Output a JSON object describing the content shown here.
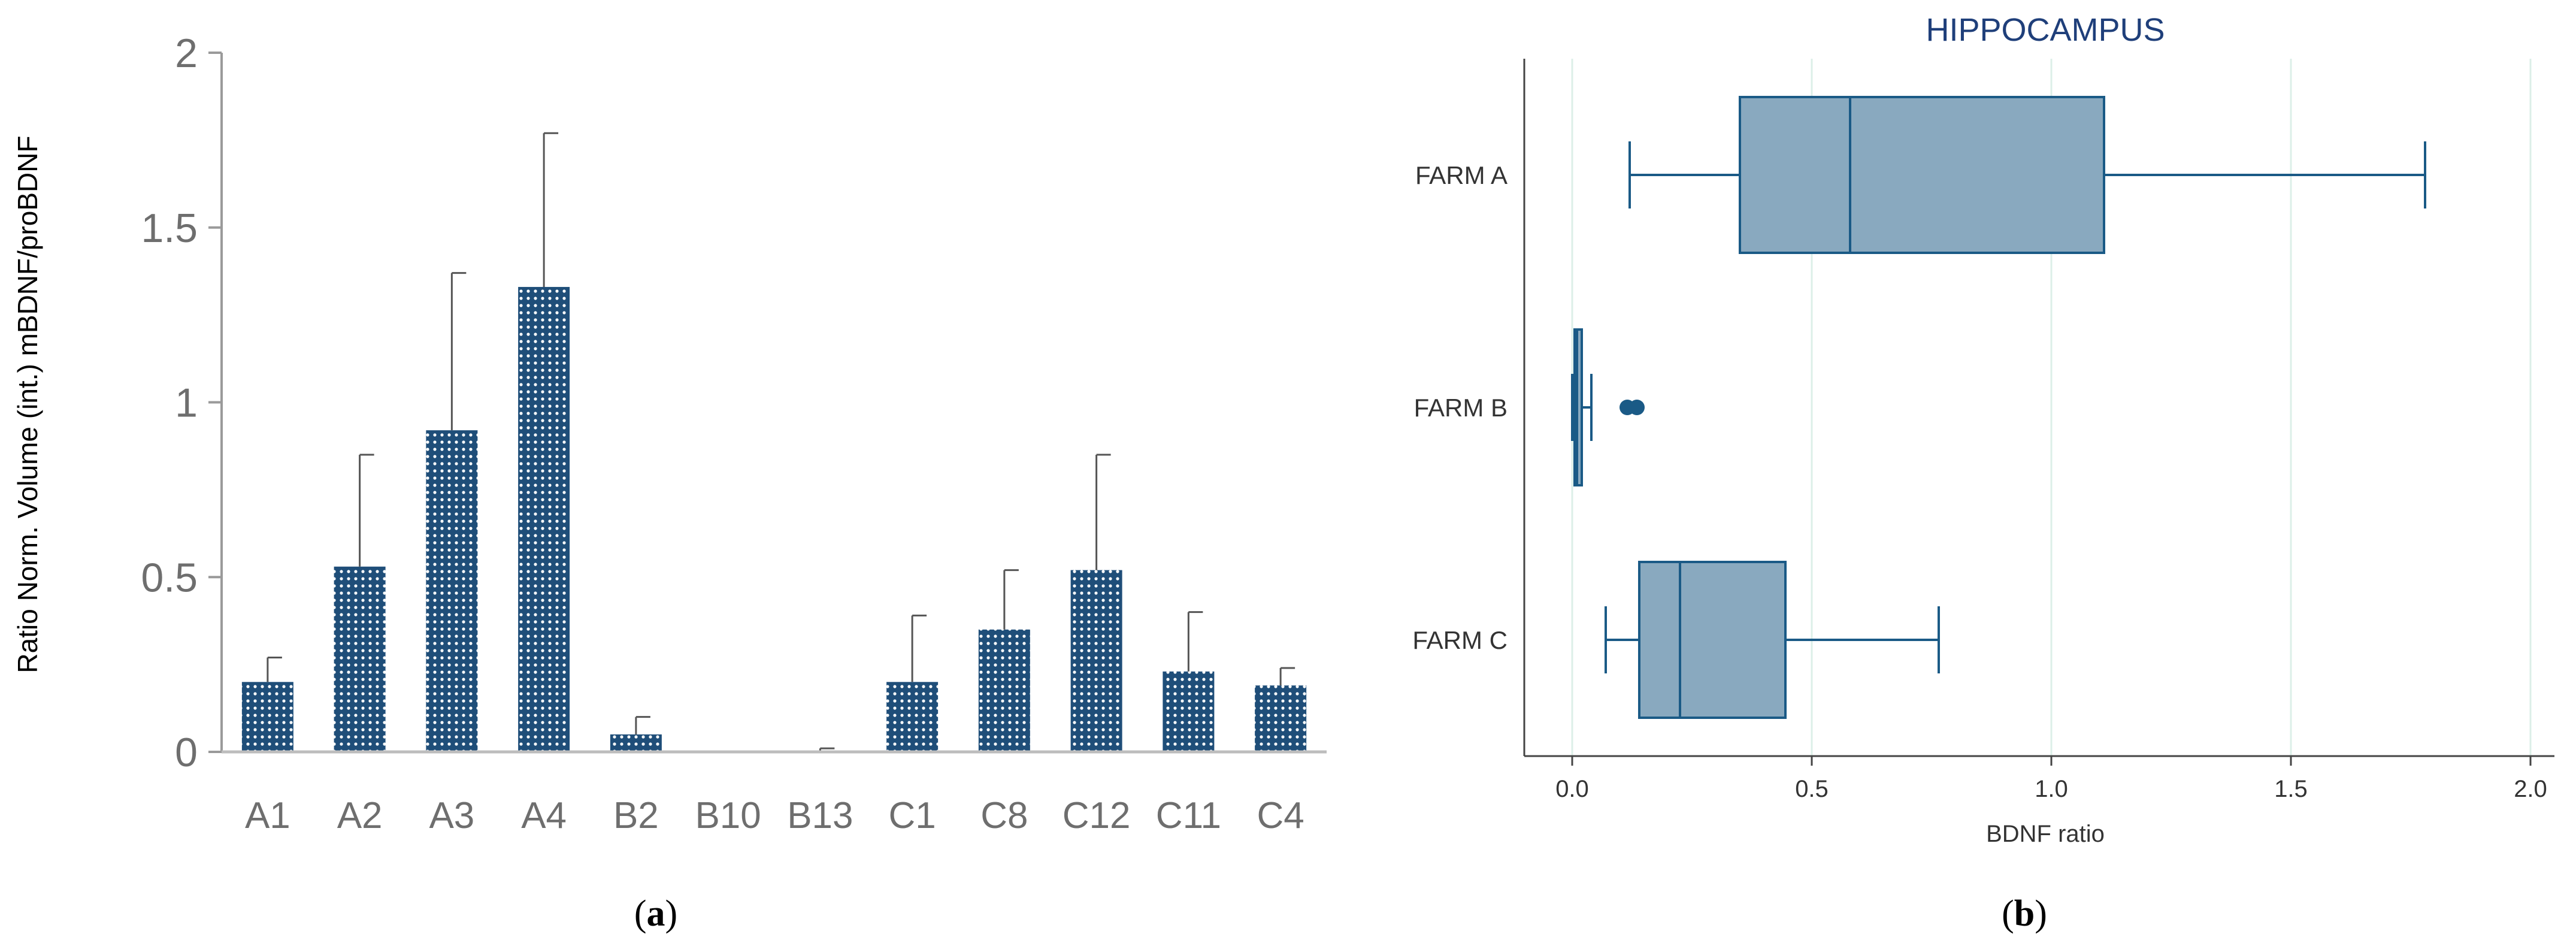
{
  "figure": {
    "panel_a_label": {
      "open": "(",
      "letter": "a",
      "close": ")"
    },
    "panel_b_label": {
      "open": "(",
      "letter": "b",
      "close": ")"
    }
  },
  "chart_data": [
    {
      "type": "bar",
      "panel": "a",
      "title": "",
      "xlabel": "",
      "ylabel": "Ratio Norm. Volume (int.) mBDNF/proBDNF",
      "ylim": [
        0,
        2
      ],
      "yticks": [
        0,
        0.5,
        1,
        1.5,
        2
      ],
      "ytick_labels": [
        "0",
        "0.5",
        "1",
        "1.5",
        "2"
      ],
      "categories": [
        "A1",
        "A2",
        "A3",
        "A4",
        "B2",
        "B10",
        "B13",
        "C1",
        "C8",
        "C12",
        "C11",
        "C4"
      ],
      "values": [
        0.2,
        0.53,
        0.92,
        1.33,
        0.05,
        0.0,
        0.0,
        0.2,
        0.35,
        0.52,
        0.23,
        0.19
      ],
      "error_upper": [
        0.07,
        0.32,
        0.45,
        0.44,
        0.05,
        0.0,
        0.01,
        0.19,
        0.17,
        0.33,
        0.17,
        0.05
      ],
      "color": "#1f4e79",
      "bar_pattern": "dotted"
    },
    {
      "type": "box",
      "panel": "b",
      "title": "HIPPOCAMPUS",
      "xlabel": "BDNF ratio",
      "ylabel": "",
      "xlim": [
        -0.1,
        2.05
      ],
      "xticks": [
        0,
        0.5,
        1,
        1.5,
        2
      ],
      "xtick_labels": [
        "0.0",
        "0.5",
        "1.0",
        "1.5",
        "2.0"
      ],
      "grid": "vertical",
      "color_fill": "#89a9bf",
      "color_line": "#1a5a86",
      "title_color": "#1f3f7a",
      "groups": [
        {
          "name": "FARM A",
          "whisker_low": 0.12,
          "q1": 0.35,
          "median": 0.58,
          "q3": 1.11,
          "whisker_high": 1.78,
          "outliers": []
        },
        {
          "name": "FARM B",
          "whisker_low": 0.0,
          "q1": 0.005,
          "median": 0.01,
          "q3": 0.02,
          "whisker_high": 0.04,
          "outliers": [
            0.115,
            0.135
          ]
        },
        {
          "name": "FARM C",
          "whisker_low": 0.07,
          "q1": 0.14,
          "median": 0.225,
          "q3": 0.445,
          "whisker_high": 0.765,
          "outliers": []
        }
      ]
    }
  ]
}
